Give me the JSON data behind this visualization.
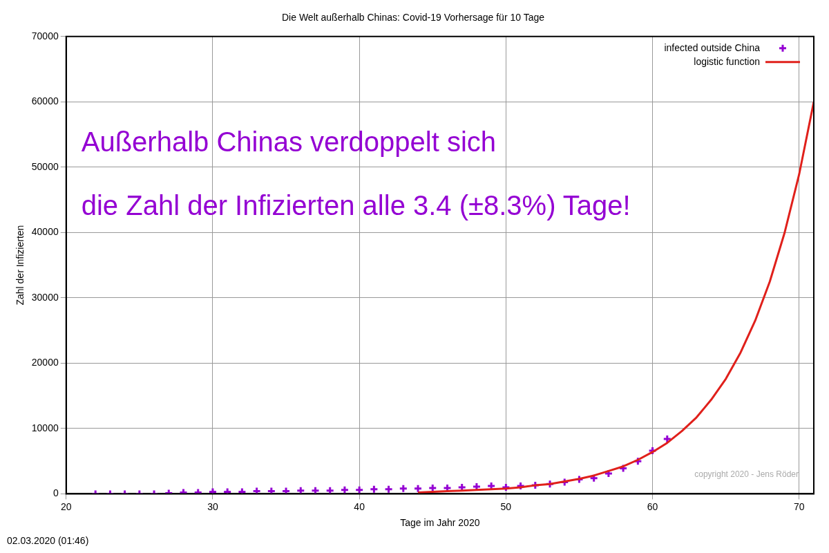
{
  "chart_data": {
    "type": "scatter",
    "title": "Die Welt außerhalb Chinas: Covid-19 Vorhersage für 10 Tage",
    "xlabel": "Tage im Jahr 2020",
    "ylabel": "Zahl der Infizierten",
    "xlim": [
      20,
      71
    ],
    "xticks": [
      20,
      30,
      40,
      50,
      60,
      70
    ],
    "ylim": [
      0,
      70000
    ],
    "yticks": [
      0,
      10000,
      20000,
      30000,
      40000,
      50000,
      60000,
      70000
    ],
    "grid": true,
    "legend": "top right",
    "marker": "cross",
    "annotations": [
      "Außerhalb Chinas verdoppelt sich",
      "die Zahl der Infizierten alle 3.4 (±8.3%) Tage!",
      "copyright 2020 - Jens Röder",
      "02.03.2020 (01:46)"
    ],
    "series": [
      {
        "name": "infected outside China",
        "color": "#9400d3",
        "x": [
          22,
          23,
          24,
          25,
          26,
          27,
          28,
          29,
          30,
          31,
          32,
          33,
          34,
          35,
          36,
          37,
          38,
          39,
          40,
          41,
          42,
          43,
          44,
          45,
          46,
          47,
          48,
          49,
          50,
          51,
          52,
          53,
          54,
          55,
          56,
          57,
          58,
          59,
          60,
          61
        ],
        "values": [
          0,
          0,
          0,
          0,
          0,
          100,
          200,
          200,
          300,
          300,
          300,
          400,
          400,
          400,
          500,
          500,
          500,
          600,
          600,
          700,
          700,
          800,
          800,
          900,
          900,
          1000,
          1100,
          1200,
          1000,
          1200,
          1300,
          1500,
          1800,
          2200,
          2400,
          3100,
          3900,
          5000,
          6600,
          8400
        ]
      },
      {
        "name": "logistic function",
        "type": "line",
        "color": "#e0201b",
        "marker": "none",
        "x": [
          44,
          45,
          46,
          47,
          48,
          49,
          50,
          51,
          52,
          53,
          54,
          55,
          56,
          57,
          58,
          59,
          60,
          61,
          62,
          63,
          64,
          65,
          66,
          67,
          68,
          69,
          70,
          71
        ],
        "values": [
          200,
          300,
          400,
          500,
          600,
          700,
          800,
          1000,
          1300,
          1500,
          1900,
          2300,
          2800,
          3500,
          4200,
          5200,
          6400,
          7800,
          9600,
          11700,
          14400,
          17600,
          21600,
          26500,
          32500,
          39900,
          48900,
          60000
        ]
      }
    ]
  }
}
